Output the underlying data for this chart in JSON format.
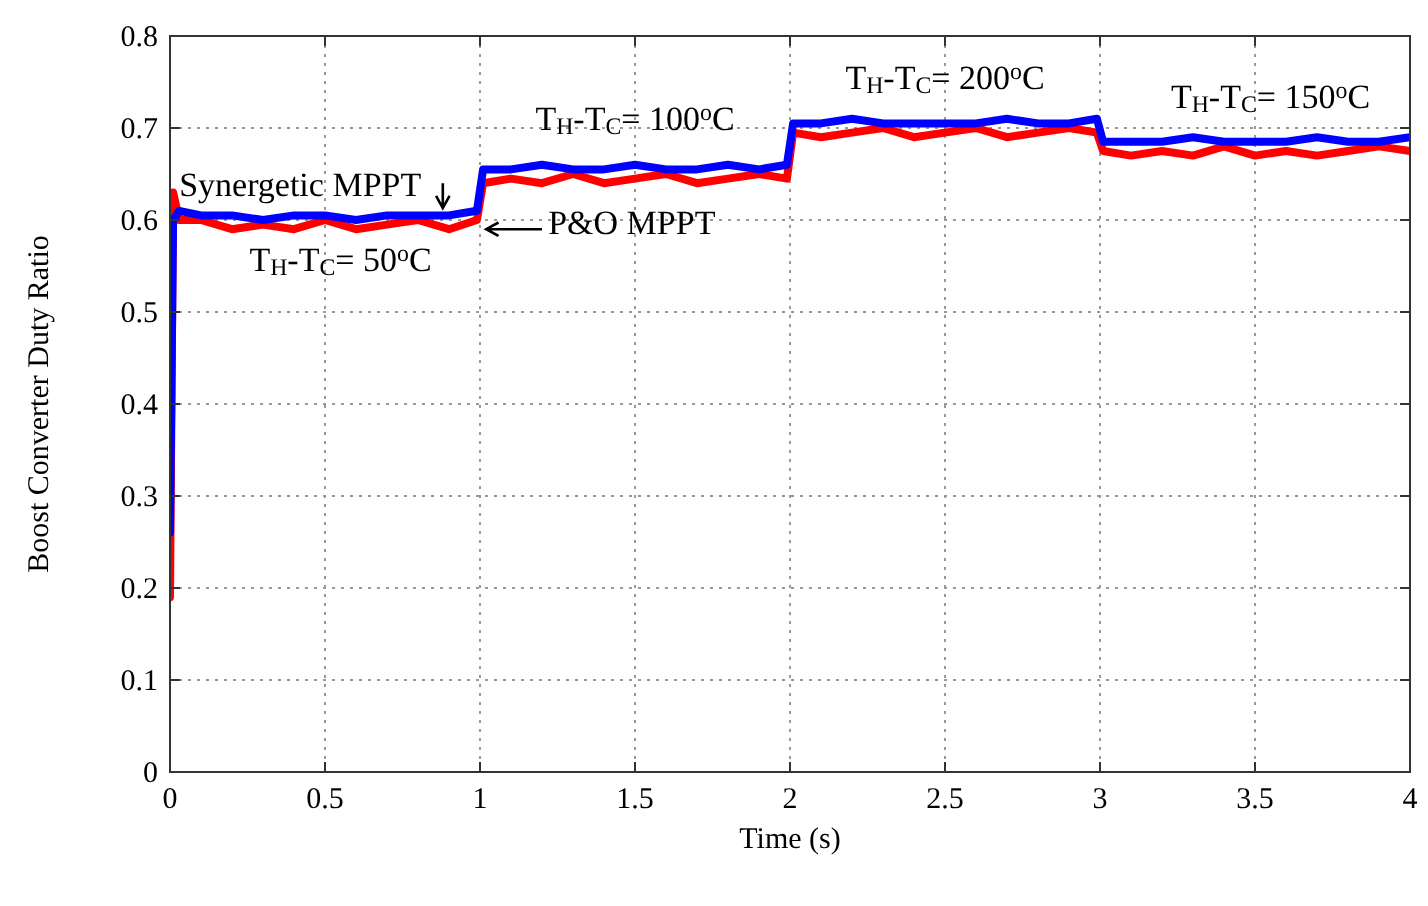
{
  "chart_data": {
    "type": "line",
    "xlabel": "Time (s)",
    "ylabel": "Boost Converter Duty Ratio",
    "x": [
      0,
      0.01,
      0.03,
      0.1,
      0.2,
      0.3,
      0.4,
      0.5,
      0.6,
      0.7,
      0.8,
      0.9,
      0.99,
      1.01,
      1.1,
      1.2,
      1.3,
      1.4,
      1.5,
      1.6,
      1.7,
      1.8,
      1.9,
      1.99,
      2.01,
      2.1,
      2.2,
      2.3,
      2.4,
      2.5,
      2.6,
      2.7,
      2.8,
      2.9,
      2.99,
      3.01,
      3.1,
      3.2,
      3.3,
      3.4,
      3.5,
      3.6,
      3.7,
      3.8,
      3.9,
      4.0
    ],
    "series": [
      {
        "name": "P&O MPPT",
        "color": "#ff0000",
        "values": [
          0.19,
          0.63,
          0.6,
          0.6,
          0.59,
          0.595,
          0.59,
          0.6,
          0.59,
          0.595,
          0.6,
          0.59,
          0.6,
          0.64,
          0.645,
          0.64,
          0.65,
          0.64,
          0.645,
          0.65,
          0.64,
          0.645,
          0.65,
          0.645,
          0.695,
          0.69,
          0.695,
          0.7,
          0.69,
          0.695,
          0.7,
          0.69,
          0.695,
          0.7,
          0.695,
          0.675,
          0.67,
          0.675,
          0.67,
          0.68,
          0.67,
          0.675,
          0.67,
          0.675,
          0.68,
          0.675
        ]
      },
      {
        "name": "Synergetic MPPT",
        "color": "#0000ff",
        "values": [
          0.26,
          0.6,
          0.61,
          0.605,
          0.605,
          0.6,
          0.605,
          0.605,
          0.6,
          0.605,
          0.605,
          0.605,
          0.61,
          0.655,
          0.655,
          0.66,
          0.655,
          0.655,
          0.66,
          0.655,
          0.655,
          0.66,
          0.655,
          0.66,
          0.705,
          0.705,
          0.71,
          0.705,
          0.705,
          0.705,
          0.705,
          0.71,
          0.705,
          0.705,
          0.71,
          0.685,
          0.685,
          0.685,
          0.69,
          0.685,
          0.685,
          0.685,
          0.69,
          0.685,
          0.685,
          0.69
        ]
      }
    ],
    "annotations": [
      "T$_{H}$-T$_{C}$= 50$^{o}$C",
      "T$_{H}$-T$_{C}$= 100$^{o}$C",
      "T$_{H}$-T$_{C}$= 200$^{o}$C",
      "T$_{H}$-T$_{C}$= 150$^{o}$C"
    ],
    "xlim": [
      0,
      4
    ],
    "xticks": [
      0,
      0.5,
      1,
      1.5,
      2,
      2.5,
      3,
      3.5,
      4
    ],
    "ylim": [
      0,
      0.8
    ],
    "yticks": [
      0,
      0.1,
      0.2,
      0.3,
      0.4,
      0.5,
      0.6,
      0.7,
      0.8
    ],
    "grid": true,
    "line_style": "solid",
    "marker": "none"
  }
}
